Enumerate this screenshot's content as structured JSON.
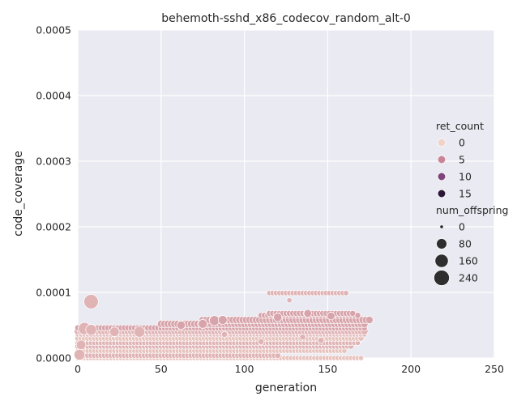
{
  "chart_data": {
    "type": "scatter",
    "title": "behemoth-sshd_x86_codecov_random_alt-0",
    "xlabel": "generation",
    "ylabel": "code_coverage",
    "xlim": [
      0,
      250
    ],
    "ylim": [
      0,
      0.0005
    ],
    "xticks": [
      "0",
      "50",
      "100",
      "150",
      "200",
      "250"
    ],
    "yticks": [
      "0.0000",
      "0.0001",
      "0.0002",
      "0.0003",
      "0.0004",
      "0.0005"
    ],
    "grid": true,
    "legend": {
      "placement": "right",
      "hue_title": "ret_count",
      "hue_entries": [
        {
          "label": "0",
          "color": "#efd2c8"
        },
        {
          "label": "5",
          "color": "#c98598"
        },
        {
          "label": "10",
          "color": "#7f4479"
        },
        {
          "label": "15",
          "color": "#2c1638"
        }
      ],
      "size_title": "num_offspring",
      "size_entries": [
        {
          "label": "0",
          "value": 0
        },
        {
          "label": "80",
          "value": 80
        },
        {
          "label": "160",
          "value": 160
        },
        {
          "label": "240",
          "value": 240
        }
      ]
    },
    "bands": [
      {
        "y": 0.0,
        "x_start": 0,
        "x_end": 170,
        "size": 5,
        "ret": 1
      },
      {
        "y": 4e-06,
        "x_start": 0,
        "x_end": 120,
        "size": 10,
        "ret": 2
      },
      {
        "y": 1.1e-05,
        "x_start": 0,
        "x_end": 160,
        "size": 5,
        "ret": 1
      },
      {
        "y": 1.8e-05,
        "x_start": 0,
        "x_end": 165,
        "size": 10,
        "ret": 2
      },
      {
        "y": 2.3e-05,
        "x_start": 0,
        "x_end": 168,
        "size": 5,
        "ret": 2
      },
      {
        "y": 3e-05,
        "x_start": 0,
        "x_end": 170,
        "size": 10,
        "ret": 1
      },
      {
        "y": 3.6e-05,
        "x_start": 0,
        "x_end": 172,
        "size": 5,
        "ret": 2
      },
      {
        "y": 4.1e-05,
        "x_start": 0,
        "x_end": 172,
        "size": 25,
        "ret": 2
      },
      {
        "y": 4.6e-05,
        "x_start": 0,
        "x_end": 172,
        "size": 10,
        "ret": 3
      },
      {
        "y": 5.2e-05,
        "x_start": 50,
        "x_end": 172,
        "size": 25,
        "ret": 3
      },
      {
        "y": 5.8e-05,
        "x_start": 75,
        "x_end": 175,
        "size": 25,
        "ret": 3
      },
      {
        "y": 6.5e-05,
        "x_start": 110,
        "x_end": 168,
        "size": 10,
        "ret": 3
      },
      {
        "y": 6.8e-05,
        "x_start": 115,
        "x_end": 165,
        "size": 10,
        "ret": 3
      },
      {
        "y": 9.9e-05,
        "x_start": 115,
        "x_end": 162,
        "size": 5,
        "ret": 2
      }
    ],
    "points": [
      {
        "x": 8,
        "y": 8.6e-05,
        "size": 200,
        "ret": 2
      },
      {
        "x": 4,
        "y": 4.5e-05,
        "size": 130,
        "ret": 2
      },
      {
        "x": 8,
        "y": 4.3e-05,
        "size": 90,
        "ret": 2
      },
      {
        "x": 2,
        "y": 2e-05,
        "size": 60,
        "ret": 2
      },
      {
        "x": 1,
        "y": 5e-06,
        "size": 90,
        "ret": 2
      },
      {
        "x": 22,
        "y": 4e-05,
        "size": 60,
        "ret": 2
      },
      {
        "x": 37,
        "y": 4e-05,
        "size": 90,
        "ret": 2
      },
      {
        "x": 62,
        "y": 5e-05,
        "size": 40,
        "ret": 3
      },
      {
        "x": 75,
        "y": 5.2e-05,
        "size": 50,
        "ret": 3
      },
      {
        "x": 82,
        "y": 5.7e-05,
        "size": 70,
        "ret": 3
      },
      {
        "x": 87,
        "y": 5.8e-05,
        "size": 50,
        "ret": 3
      },
      {
        "x": 120,
        "y": 6.2e-05,
        "size": 40,
        "ret": 3
      },
      {
        "x": 138,
        "y": 6.8e-05,
        "size": 30,
        "ret": 3
      },
      {
        "x": 152,
        "y": 6.4e-05,
        "size": 30,
        "ret": 3
      },
      {
        "x": 127,
        "y": 8.8e-05,
        "size": 5,
        "ret": 2
      },
      {
        "x": 88,
        "y": 3.6e-05,
        "size": 10,
        "ret": 2
      },
      {
        "x": 110,
        "y": 2.5e-05,
        "size": 10,
        "ret": 2
      },
      {
        "x": 135,
        "y": 3.2e-05,
        "size": 10,
        "ret": 2
      },
      {
        "x": 146,
        "y": 2.7e-05,
        "size": 10,
        "ret": 2
      }
    ]
  }
}
